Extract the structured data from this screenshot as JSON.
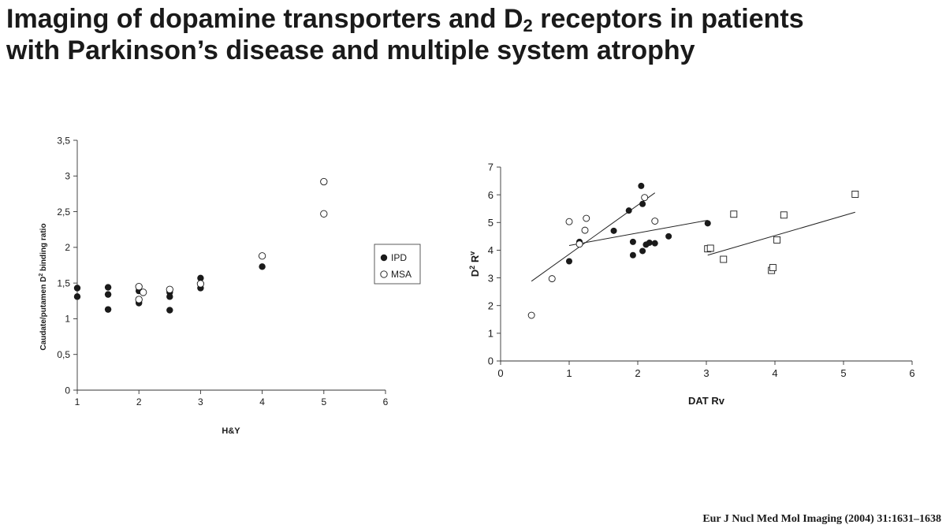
{
  "header": {
    "title_line1_pre": "Imaging of dopamine transporters and D",
    "title_line1_sub": "2",
    "title_line1_post": " receptors in patients",
    "title_line2": "with Parkinson’s disease and multiple system atrophy"
  },
  "footer": {
    "citation": "Eur J Nucl Med Mol Imaging (2004) 31:1631–1638"
  },
  "chart_data": [
    {
      "type": "scatter",
      "title": "",
      "xlabel": "H&Y",
      "ylabel_pre": "Caudate/putamen D",
      "ylabel_sup": "2",
      "ylabel_post": " binding ratio",
      "xlim": [
        1,
        6
      ],
      "ylim": [
        0,
        3.5
      ],
      "xticks": [
        "1",
        "2",
        "3",
        "4",
        "5",
        "6"
      ],
      "yticks": [
        "0",
        "0,5",
        "1",
        "1,5",
        "2",
        "2,5",
        "3",
        "3,5"
      ],
      "grid": false,
      "legend": {
        "placement": "right",
        "entries": [
          "IPD",
          "MSA"
        ]
      },
      "series": [
        {
          "name": "IPD",
          "marker": "filled-circle",
          "points": [
            [
              1,
              1.43
            ],
            [
              1,
              1.31
            ],
            [
              1.5,
              1.44
            ],
            [
              1.5,
              1.34
            ],
            [
              1.5,
              1.13
            ],
            [
              2,
              1.39
            ],
            [
              2,
              1.25
            ],
            [
              2,
              1.22
            ],
            [
              2.5,
              1.37
            ],
            [
              2.5,
              1.31
            ],
            [
              2.5,
              1.12
            ],
            [
              3,
              1.57
            ],
            [
              3,
              1.43
            ],
            [
              4,
              1.73
            ]
          ]
        },
        {
          "name": "MSA",
          "marker": "open-circle",
          "points": [
            [
              2,
              1.45
            ],
            [
              2,
              1.27
            ],
            [
              2.07,
              1.37
            ],
            [
              2.5,
              1.41
            ],
            [
              3,
              1.49
            ],
            [
              4,
              1.88
            ],
            [
              5,
              2.92
            ],
            [
              5,
              2.47
            ]
          ]
        }
      ]
    },
    {
      "type": "scatter",
      "title": "",
      "xlabel": "DAT Rv",
      "ylabel_pre": "D",
      "ylabel_sup1": "2",
      "ylabel_mid": " R",
      "ylabel_sup2": "v",
      "xlim": [
        0,
        6
      ],
      "ylim": [
        0,
        7
      ],
      "xticks": [
        "0",
        "1",
        "2",
        "3",
        "4",
        "5",
        "6"
      ],
      "yticks": [
        "0",
        "1",
        "2",
        "3",
        "4",
        "5",
        "6",
        "7"
      ],
      "grid": false,
      "series": [
        {
          "marker": "filled-circle",
          "points": [
            [
              1,
              3.6
            ],
            [
              1.15,
              4.3
            ],
            [
              1.65,
              4.7
            ],
            [
              1.87,
              5.43
            ],
            [
              1.93,
              4.3
            ],
            [
              1.93,
              3.82
            ],
            [
              2.05,
              6.32
            ],
            [
              2.07,
              5.67
            ],
            [
              2.07,
              3.97
            ],
            [
              2.12,
              4.2
            ],
            [
              2.17,
              4.27
            ],
            [
              2.25,
              4.25
            ],
            [
              2.45,
              4.5
            ],
            [
              3.02,
              4.97
            ]
          ]
        },
        {
          "marker": "open-circle",
          "points": [
            [
              0.45,
              1.65
            ],
            [
              0.75,
              2.97
            ],
            [
              1,
              5.03
            ],
            [
              1.15,
              4.22
            ],
            [
              1.23,
              4.72
            ],
            [
              1.25,
              5.15
            ],
            [
              2.1,
              5.9
            ],
            [
              2.25,
              5.05
            ]
          ]
        },
        {
          "marker": "open-square",
          "points": [
            [
              3.02,
              4.05
            ],
            [
              3.06,
              4.07
            ],
            [
              3.25,
              3.67
            ],
            [
              3.4,
              5.3
            ],
            [
              3.95,
              3.27
            ],
            [
              3.97,
              3.37
            ],
            [
              4.03,
              4.37
            ],
            [
              4.13,
              5.27
            ],
            [
              5.17,
              6.02
            ]
          ]
        }
      ],
      "trendlines": [
        {
          "from": [
            0.45,
            2.88
          ],
          "to": [
            2.25,
            6.07
          ]
        },
        {
          "from": [
            1,
            4.17
          ],
          "to": [
            3.02,
            5.08
          ]
        },
        {
          "from": [
            3.02,
            3.82
          ],
          "to": [
            5.17,
            5.37
          ]
        }
      ]
    }
  ]
}
